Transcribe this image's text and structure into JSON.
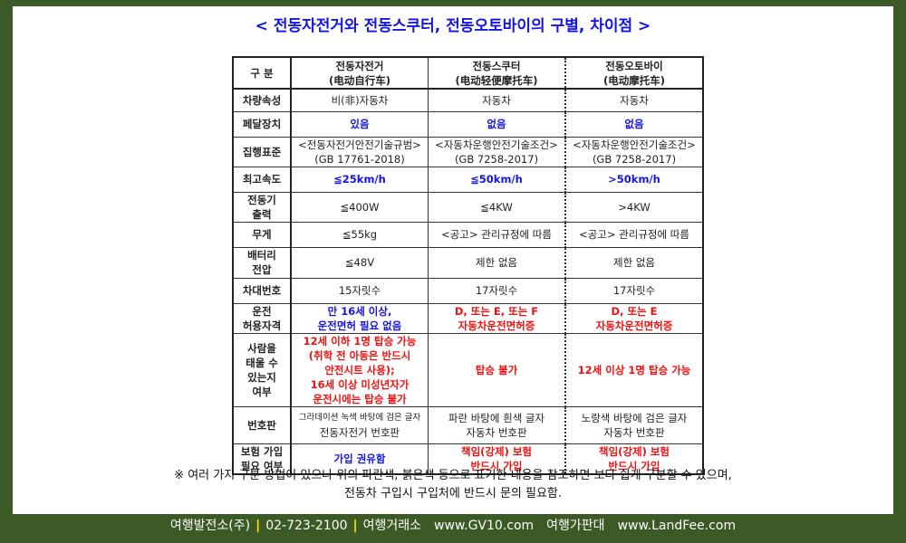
{
  "title": "< 전동자전거와 전동스쿠터, 전동오토바이의 구별, 차이점 >",
  "colors": {
    "blue": "#1414e6",
    "red": "#f01010",
    "black": "#222222",
    "frame": "#3b5a26",
    "separator": "#ffe400"
  },
  "table": {
    "header": [
      "구 분",
      "전동자전거\n(电动自行车)",
      "전동스쿠터\n(电动轻便摩托车)",
      "전동오토바이\n(电动摩托车)"
    ],
    "rows": [
      {
        "label": "차량속성",
        "h": 25,
        "cells": [
          {
            "t": "비(非)자동차",
            "c": "black"
          },
          {
            "t": "자동차",
            "c": "black"
          },
          {
            "t": "자동차",
            "c": "black"
          }
        ]
      },
      {
        "label": "페달장치",
        "h": 28,
        "cells": [
          {
            "t": "있음",
            "c": "blue",
            "b": true
          },
          {
            "t": "없음",
            "c": "blue",
            "b": true
          },
          {
            "t": "없음",
            "c": "blue",
            "b": true
          }
        ]
      },
      {
        "label": "집행표준",
        "h": 33,
        "cells": [
          {
            "t": "<전동자전거안전기술규범>\n(GB 17761-2018)",
            "c": "black"
          },
          {
            "t": "<자동차운행안전기술조건>\n(GB 7258-2017)",
            "c": "black"
          },
          {
            "t": "<자동차운행안전기술조건>\n(GB 7258-2017)",
            "c": "black"
          }
        ]
      },
      {
        "label": "최고속도",
        "h": 28,
        "cells": [
          {
            "t": "≦25km/h",
            "c": "blue",
            "b": true
          },
          {
            "t": "≦50km/h",
            "c": "blue",
            "b": true
          },
          {
            "t": ">50km/h",
            "c": "blue",
            "b": true
          }
        ]
      },
      {
        "label": "전동기\n출력",
        "h": 33,
        "cells": [
          {
            "t": "≦400W",
            "c": "black"
          },
          {
            "t": "≦4KW",
            "c": "black"
          },
          {
            "t": ">4KW",
            "c": "black"
          }
        ]
      },
      {
        "label": "무게",
        "h": 28,
        "cells": [
          {
            "t": "≦55kg",
            "c": "black"
          },
          {
            "t": "<공고> 관리규정에 따름",
            "c": "black"
          },
          {
            "t": "<공고> 관리규정에 따름",
            "c": "black"
          }
        ]
      },
      {
        "label": "배터리\n전압",
        "h": 34,
        "cells": [
          {
            "t": "≦48V",
            "c": "black"
          },
          {
            "t": "제한 없음",
            "c": "black"
          },
          {
            "t": "제한 없음",
            "c": "black"
          }
        ]
      },
      {
        "label": "차대번호",
        "h": 28,
        "cells": [
          {
            "t": "15자릿수",
            "c": "black"
          },
          {
            "t": "17자릿수",
            "c": "black"
          },
          {
            "t": "17자릿수",
            "c": "black"
          }
        ]
      },
      {
        "label": "운전\n허용자격",
        "h": 33,
        "cells": [
          {
            "t": "만 16세 이상,\n운전면허 필요 없음",
            "c": "blue",
            "b": true
          },
          {
            "t": "D, 또는 E, 또는 F\n자동차운전면허증",
            "c": "red",
            "b": true
          },
          {
            "t": "D, 또는 E\n자동차운전면허증",
            "c": "red",
            "b": true
          }
        ]
      },
      {
        "label": "사람을\n태울 수\n있는지\n여부",
        "h": 70,
        "cells": [
          {
            "t": "12세 이하 1명 탑승 가능\n(취학 전 아동은 반드시\n안전시트 사용);\n16세 이상 미성년자가\n운전시에는 탑승 불가",
            "c": "red",
            "b": true
          },
          {
            "t": "탑승 불가",
            "c": "red",
            "b": true
          },
          {
            "t": "12세 이상 1명 탑승 가능",
            "c": "red",
            "b": true
          }
        ]
      },
      {
        "label": "번호판",
        "h": 41,
        "cells": [
          {
            "t": "그라데이션 녹색 바탕에 검은 글자",
            "t2": "전동자전거 번호판",
            "c": "black"
          },
          {
            "t": "파란 바탕에 흰색 글자\n자동차 번호판",
            "c": "black"
          },
          {
            "t": "노랑색 바탕에 검은 글자\n자동차 번호판",
            "c": "black"
          }
        ]
      },
      {
        "label": "보험 가입\n필요 여부",
        "h": 34,
        "cells": [
          {
            "t": "가입 권유함",
            "c": "blue",
            "b": true
          },
          {
            "t": "책임(강제) 보험\n반드시 가입",
            "c": "red",
            "b": true
          },
          {
            "t": "책임(강제) 보험\n반드시 가입",
            "c": "red",
            "b": true
          }
        ]
      }
    ]
  },
  "note": "※ 여러 가지 구분 방법이 있으나 위의 파란색, 붉은색 등으로 표기한 내용을 참조하면 보다 쉽게 구분할 수 있으며,\n전동차 구입시 구입처에 반드시 문의 필요함.",
  "footer": {
    "company": "여행발전소(주)",
    "phone": "02-723-2100",
    "site1_name": "여행거래소",
    "site1_url": "www.GV10.com",
    "site2_name": "여행가판대",
    "site2_url": "www.LandFee.com",
    "separator": "|"
  }
}
